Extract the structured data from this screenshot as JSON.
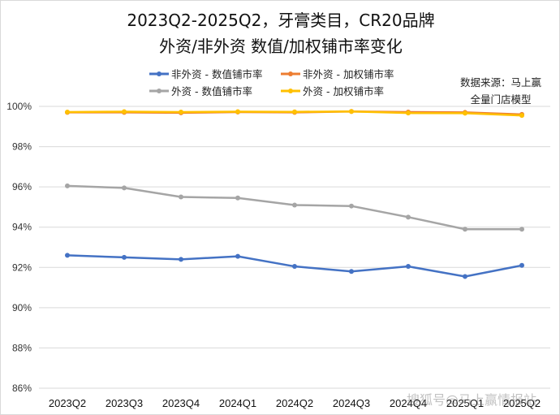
{
  "chart_data": {
    "type": "line",
    "title": "2023Q2-2025Q2，牙膏类目，CR20品牌",
    "subtitle": "外资/非外资 数值/加权铺市率变化",
    "categories": [
      "2023Q2",
      "2023Q3",
      "2023Q4",
      "2024Q1",
      "2024Q2",
      "2024Q3",
      "2024Q4",
      "2025Q1",
      "2025Q2"
    ],
    "ylim": [
      86,
      100
    ],
    "yticks": [
      "86%",
      "88%",
      "90%",
      "92%",
      "94%",
      "96%",
      "98%",
      "100%"
    ],
    "ytick_values": [
      86,
      88,
      90,
      92,
      94,
      96,
      98,
      100
    ],
    "grid": true,
    "legend_position": "top",
    "series": [
      {
        "name": "非外资 - 数值铺市率",
        "color": "#4472c4",
        "values": [
          92.6,
          92.5,
          92.4,
          92.55,
          92.05,
          91.8,
          92.05,
          91.55,
          92.1
        ]
      },
      {
        "name": "非外资 - 加权铺市率",
        "color": "#ed7d31",
        "values": [
          99.7,
          99.7,
          99.68,
          99.72,
          99.7,
          99.75,
          99.72,
          99.7,
          99.6
        ]
      },
      {
        "name": "外资 - 数值铺市率",
        "color": "#a5a5a5",
        "values": [
          96.05,
          95.95,
          95.5,
          95.45,
          95.1,
          95.05,
          94.5,
          93.9,
          93.9
        ]
      },
      {
        "name": "外资 - 加权铺市率",
        "color": "#ffc000",
        "values": [
          99.72,
          99.74,
          99.72,
          99.74,
          99.73,
          99.75,
          99.67,
          99.66,
          99.55
        ]
      }
    ],
    "annotation": [
      "数据来源：马上赢",
      "全量门店模型"
    ],
    "watermark": "搜狐号@马上赢情报站"
  }
}
